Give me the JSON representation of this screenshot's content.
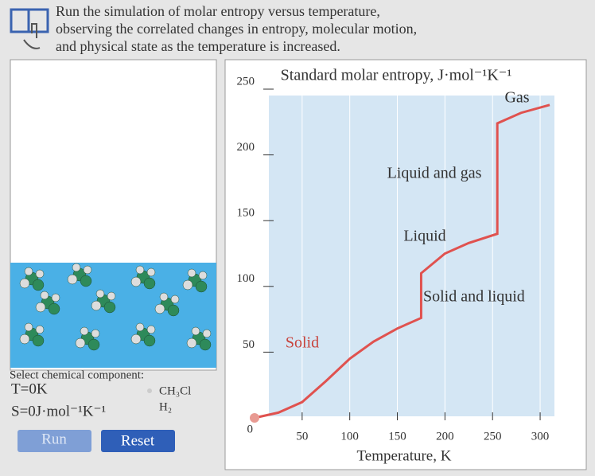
{
  "header": {
    "lines": [
      "Run the simulation of molar entropy versus temperature,",
      "observing the correlated changes in entropy, molecular motion,",
      "and physical state as the temperature is increased."
    ]
  },
  "controls": {
    "select_label": "Select chemical component:",
    "temperature": "T=0K",
    "entropy": "S=0J·mol⁻¹K⁻¹",
    "options": [
      "CH₃Cl",
      "H₂"
    ],
    "buttons": [
      "Run",
      "Reset"
    ]
  },
  "chart_data": {
    "type": "line",
    "title": "Standard molar entropy, J·mol⁻¹K⁻¹",
    "x_label": "Temperature, K",
    "x": [
      0,
      25,
      50,
      75,
      100,
      125,
      150,
      175,
      175,
      200,
      225,
      255,
      255,
      280,
      310
    ],
    "series": [
      {
        "name": "Standard molar entropy",
        "color": "#e0524f",
        "values": [
          0,
          4,
          12,
          28,
          45,
          58,
          68,
          76,
          110,
          125,
          133,
          140,
          224,
          232,
          238
        ]
      }
    ],
    "annotations": [
      "Solid",
      "Solid and liquid",
      "Liquid",
      "Liquid and gas",
      "Gas"
    ],
    "xlim": [
      0,
      315
    ],
    "ylim": [
      0,
      250
    ],
    "xticks": [
      50,
      100,
      150,
      200,
      250,
      300
    ],
    "yticks": [
      0,
      50,
      100,
      150,
      200,
      250
    ],
    "grid": true
  }
}
